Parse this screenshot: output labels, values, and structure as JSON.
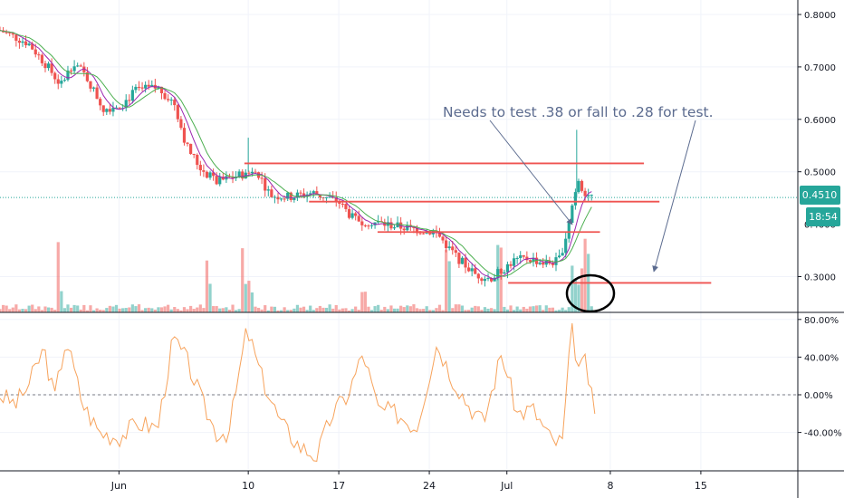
{
  "chart_data": [
    {
      "type": "candlestick",
      "title": "",
      "price_axis": {
        "ticks": [
          "0.8000",
          "0.7000",
          "0.6000",
          "0.5000",
          "0.3000"
        ],
        "tick_values": [
          0.8,
          0.7,
          0.6,
          0.5,
          0.3
        ],
        "ylim": [
          0.225,
          0.82
        ],
        "last_price_label": "0.4510",
        "last_price": 0.451,
        "countdown_label": "18:54",
        "partially_hidden_label": "0.4000"
      },
      "time_axis": {
        "ticks": [
          "Jun",
          "10",
          "17",
          "24",
          "Jul",
          "8",
          "15"
        ],
        "tick_days": [
          0,
          10,
          17,
          24,
          30,
          38,
          45
        ],
        "range_days": [
          -9.2,
          52.5
        ]
      },
      "annotation": {
        "text": "Needs to test .38 or fall to .28 for test."
      },
      "support_resistance_lines": [
        {
          "level": 0.516,
          "from_day": 9.7,
          "to_day": 40.6
        },
        {
          "level": 0.443,
          "from_day": 14.7,
          "to_day": 41.8
        },
        {
          "level": 0.385,
          "from_day": 20.0,
          "to_day": 37.2
        },
        {
          "level": 0.288,
          "from_day": 30.1,
          "to_day": 45.8
        }
      ],
      "price_path": [
        {
          "day": -9.2,
          "close": 0.77
        },
        {
          "day": -7.0,
          "close": 0.745
        },
        {
          "day": -5.5,
          "close": 0.7
        },
        {
          "day": -4.5,
          "close": 0.665
        },
        {
          "day": -3.5,
          "close": 0.71
        },
        {
          "day": -2.5,
          "close": 0.68
        },
        {
          "day": -1.2,
          "close": 0.62
        },
        {
          "day": 0.3,
          "close": 0.63
        },
        {
          "day": 1.3,
          "close": 0.655
        },
        {
          "day": 3.0,
          "close": 0.66
        },
        {
          "day": 4.3,
          "close": 0.63
        },
        {
          "day": 5.2,
          "close": 0.55
        },
        {
          "day": 6.2,
          "close": 0.51
        },
        {
          "day": 7.5,
          "close": 0.48
        },
        {
          "day": 9.5,
          "close": 0.495
        },
        {
          "day": 10.7,
          "close": 0.5
        },
        {
          "day": 11.7,
          "close": 0.455
        },
        {
          "day": 13.2,
          "close": 0.452
        },
        {
          "day": 15.0,
          "close": 0.46
        },
        {
          "day": 17.0,
          "close": 0.442
        },
        {
          "day": 18.2,
          "close": 0.408
        },
        {
          "day": 19.5,
          "close": 0.405
        },
        {
          "day": 21.0,
          "close": 0.398
        },
        {
          "day": 23.0,
          "close": 0.39
        },
        {
          "day": 24.5,
          "close": 0.385
        },
        {
          "day": 26.0,
          "close": 0.34
        },
        {
          "day": 27.5,
          "close": 0.305
        },
        {
          "day": 28.7,
          "close": 0.296
        },
        {
          "day": 29.5,
          "close": 0.31
        },
        {
          "day": 30.5,
          "close": 0.33
        },
        {
          "day": 31.7,
          "close": 0.335
        },
        {
          "day": 33.0,
          "close": 0.325
        },
        {
          "day": 34.0,
          "close": 0.33
        },
        {
          "day": 34.5,
          "close": 0.37
        },
        {
          "day": 35.0,
          "close": 0.43
        },
        {
          "day": 35.5,
          "close": 0.49
        },
        {
          "day": 36.0,
          "close": 0.46
        },
        {
          "day": 36.7,
          "close": 0.451
        }
      ],
      "volume_spike_days": [
        -4.5,
        7.0,
        9.8,
        10.2,
        19.0,
        25.5,
        29.5,
        35.3,
        36.0
      ]
    },
    {
      "type": "line",
      "title": "",
      "axis_ticks": [
        "80.00%",
        "40.00%",
        "0.00%",
        "-40.00%"
      ],
      "tick_values": [
        80,
        40,
        0,
        -40
      ],
      "ylim": [
        -90,
        95
      ],
      "series": [
        {
          "points": [
            {
              "day": -9.2,
              "value": 0
            },
            {
              "day": -8.0,
              "value": -10
            },
            {
              "day": -7.0,
              "value": 10
            },
            {
              "day": -5.8,
              "value": 50
            },
            {
              "day": -5.0,
              "value": -5
            },
            {
              "day": -4.1,
              "value": 60
            },
            {
              "day": -2.8,
              "value": -10
            },
            {
              "day": -1.5,
              "value": -40
            },
            {
              "day": 0.0,
              "value": -45
            },
            {
              "day": 1.5,
              "value": -30
            },
            {
              "day": 3.0,
              "value": -35
            },
            {
              "day": 4.2,
              "value": 60
            },
            {
              "day": 5.3,
              "value": 35
            },
            {
              "day": 6.5,
              "value": -10
            },
            {
              "day": 7.5,
              "value": -40
            },
            {
              "day": 8.5,
              "value": -40
            },
            {
              "day": 9.9,
              "value": 70
            },
            {
              "day": 11.0,
              "value": 20
            },
            {
              "day": 12.5,
              "value": -30
            },
            {
              "day": 14.0,
              "value": -55
            },
            {
              "day": 15.3,
              "value": -65
            },
            {
              "day": 16.5,
              "value": -20
            },
            {
              "day": 17.7,
              "value": 0
            },
            {
              "day": 18.9,
              "value": 45
            },
            {
              "day": 20.0,
              "value": -15
            },
            {
              "day": 21.5,
              "value": -20
            },
            {
              "day": 23.0,
              "value": -35
            },
            {
              "day": 24.6,
              "value": 55
            },
            {
              "day": 25.7,
              "value": 20
            },
            {
              "day": 27.0,
              "value": -10
            },
            {
              "day": 28.2,
              "value": -30
            },
            {
              "day": 29.6,
              "value": 45
            },
            {
              "day": 30.8,
              "value": -20
            },
            {
              "day": 32.0,
              "value": -15
            },
            {
              "day": 33.5,
              "value": -50
            },
            {
              "day": 34.3,
              "value": -50
            },
            {
              "day": 35.0,
              "value": 70
            },
            {
              "day": 35.6,
              "value": 25
            },
            {
              "day": 36.1,
              "value": 35
            },
            {
              "day": 36.8,
              "value": -25
            }
          ]
        }
      ]
    }
  ]
}
